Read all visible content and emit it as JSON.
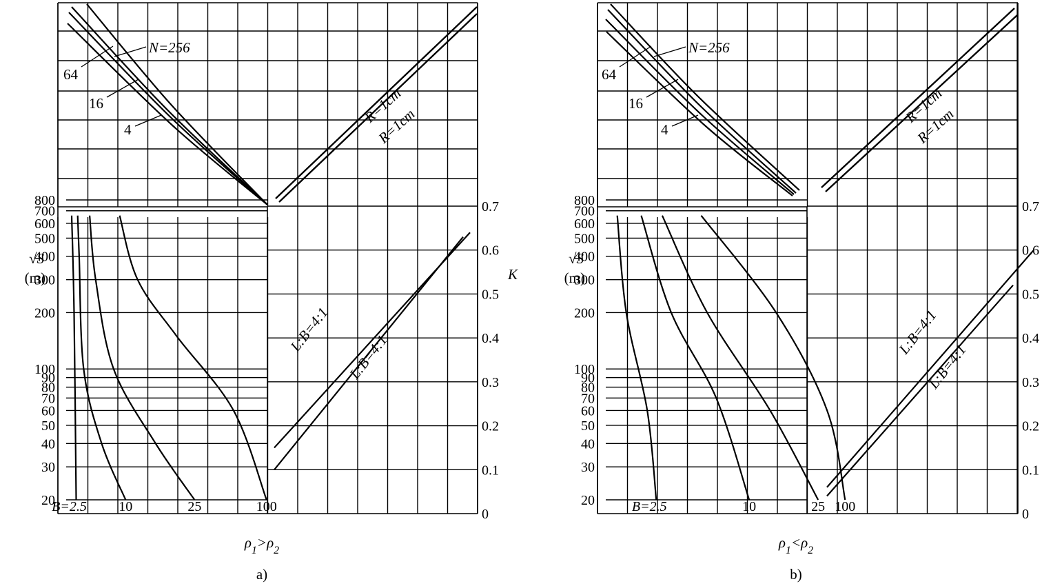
{
  "chart_data": [
    {
      "panel": "a)",
      "condition": {
        "base": "ρ",
        "sub1": "1",
        "op": ">",
        "sub2": "2"
      },
      "y_axis": {
        "label_top": "√S",
        "label_bottom": "(m)",
        "scale": "log",
        "ticks": [
          20,
          30,
          40,
          50,
          60,
          70,
          80,
          90,
          100,
          200,
          300,
          400,
          500,
          600,
          700,
          800
        ],
        "range": [
          18,
          850
        ]
      },
      "k_axis": {
        "label": "K",
        "ticks": [
          0,
          0.1,
          0.2,
          0.3,
          0.4,
          0.5,
          0.6,
          0.7
        ],
        "range": [
          0,
          0.7
        ]
      },
      "series_sqrtS": [
        {
          "label": "B=2.5",
          "points": [
            [
              0.0,
              660
            ],
            [
              0.08,
              200
            ],
            [
              0.15,
              20
            ]
          ]
        },
        {
          "label": "10",
          "points": [
            [
              0.2,
              660
            ],
            [
              0.25,
              400
            ],
            [
              0.4,
              100
            ],
            [
              1.0,
              40
            ],
            [
              1.8,
              20
            ]
          ]
        },
        {
          "label": "25",
          "points": [
            [
              0.6,
              660
            ],
            [
              0.8,
              300
            ],
            [
              1.4,
              100
            ],
            [
              2.8,
              40
            ],
            [
              4.1,
              20
            ]
          ]
        },
        {
          "label": "100",
          "points": [
            [
              1.6,
              660
            ],
            [
              2.2,
              300
            ],
            [
              3.5,
              150
            ],
            [
              5.4,
              60
            ],
            [
              6.5,
              20
            ]
          ]
        }
      ],
      "series_N": [
        {
          "label": "N=256"
        },
        {
          "label": "64"
        },
        {
          "label": "16"
        },
        {
          "label": "4"
        }
      ],
      "series_R": [
        {
          "label": "R=1cm"
        },
        {
          "label": "R=1cm"
        }
      ],
      "series_LB": [
        {
          "label": "L:B=4:1",
          "k_start": 0.15,
          "k_end": 0.64
        },
        {
          "label": "L:B=4:1",
          "k_start": 0.1,
          "k_end": 0.63
        }
      ]
    },
    {
      "panel": "b)",
      "condition": {
        "base": "ρ",
        "sub1": "1",
        "op": "<",
        "sub2": "2"
      },
      "y_axis": {
        "label_top": "√S",
        "label_bottom": "(m)",
        "scale": "log",
        "ticks": [
          20,
          30,
          40,
          50,
          60,
          70,
          80,
          90,
          100,
          200,
          300,
          400,
          500,
          600,
          700,
          800
        ],
        "range": [
          18,
          850
        ]
      },
      "k_axis": {
        "label": "",
        "ticks": [
          0,
          0.1,
          0.2,
          0.3,
          0.4,
          0.5,
          0.6,
          0.7
        ],
        "range": [
          0,
          0.7
        ]
      },
      "series_sqrtS": [
        {
          "label": "B=2.5",
          "points": [
            [
              0.2,
              660
            ],
            [
              0.5,
              200
            ],
            [
              1.2,
              60
            ],
            [
              1.5,
              20
            ]
          ]
        },
        {
          "label": "10",
          "points": [
            [
              1.0,
              660
            ],
            [
              2.0,
              200
            ],
            [
              3.5,
              70
            ],
            [
              4.6,
              20
            ]
          ]
        },
        {
          "label": "25",
          "points": [
            [
              1.7,
              660
            ],
            [
              3.2,
              200
            ],
            [
              5.3,
              60
            ],
            [
              6.9,
              20
            ]
          ]
        },
        {
          "label": "100",
          "points": [
            [
              3.0,
              660
            ],
            [
              5.5,
              200
            ],
            [
              7.2,
              60
            ],
            [
              7.8,
              20
            ]
          ]
        }
      ],
      "series_N": [
        {
          "label": "N=256"
        },
        {
          "label": "64"
        },
        {
          "label": "16"
        },
        {
          "label": "4"
        }
      ],
      "series_R": [
        {
          "label": "R=1cm"
        },
        {
          "label": "R=1cm"
        }
      ],
      "series_LB": [
        {
          "label": "L:B=4:1",
          "k_start": 0.06,
          "k_end": 0.6
        },
        {
          "label": "L:B=4:1",
          "k_start": 0.04,
          "k_end": 0.52
        }
      ]
    }
  ]
}
